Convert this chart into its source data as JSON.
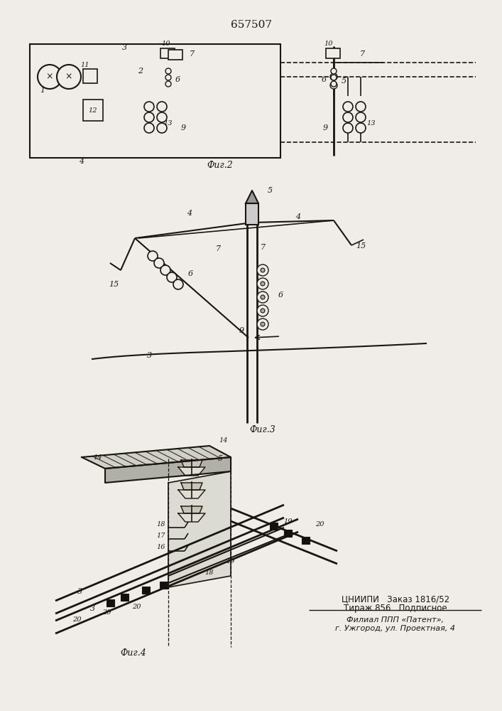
{
  "title": "657507",
  "bg_color": "#f0ede8",
  "line_color": "#1a1510",
  "figsize": [
    7.07,
    10.0
  ],
  "dpi": 100,
  "footer_line1": "ЦНИИПИ   Заказ 1816/52",
  "footer_line2": "Тираж 856   Подписное",
  "footer_line3": "Филиал ППП «Патент»,",
  "footer_line4": "г. Ужгород, ул. Проектная, 4"
}
